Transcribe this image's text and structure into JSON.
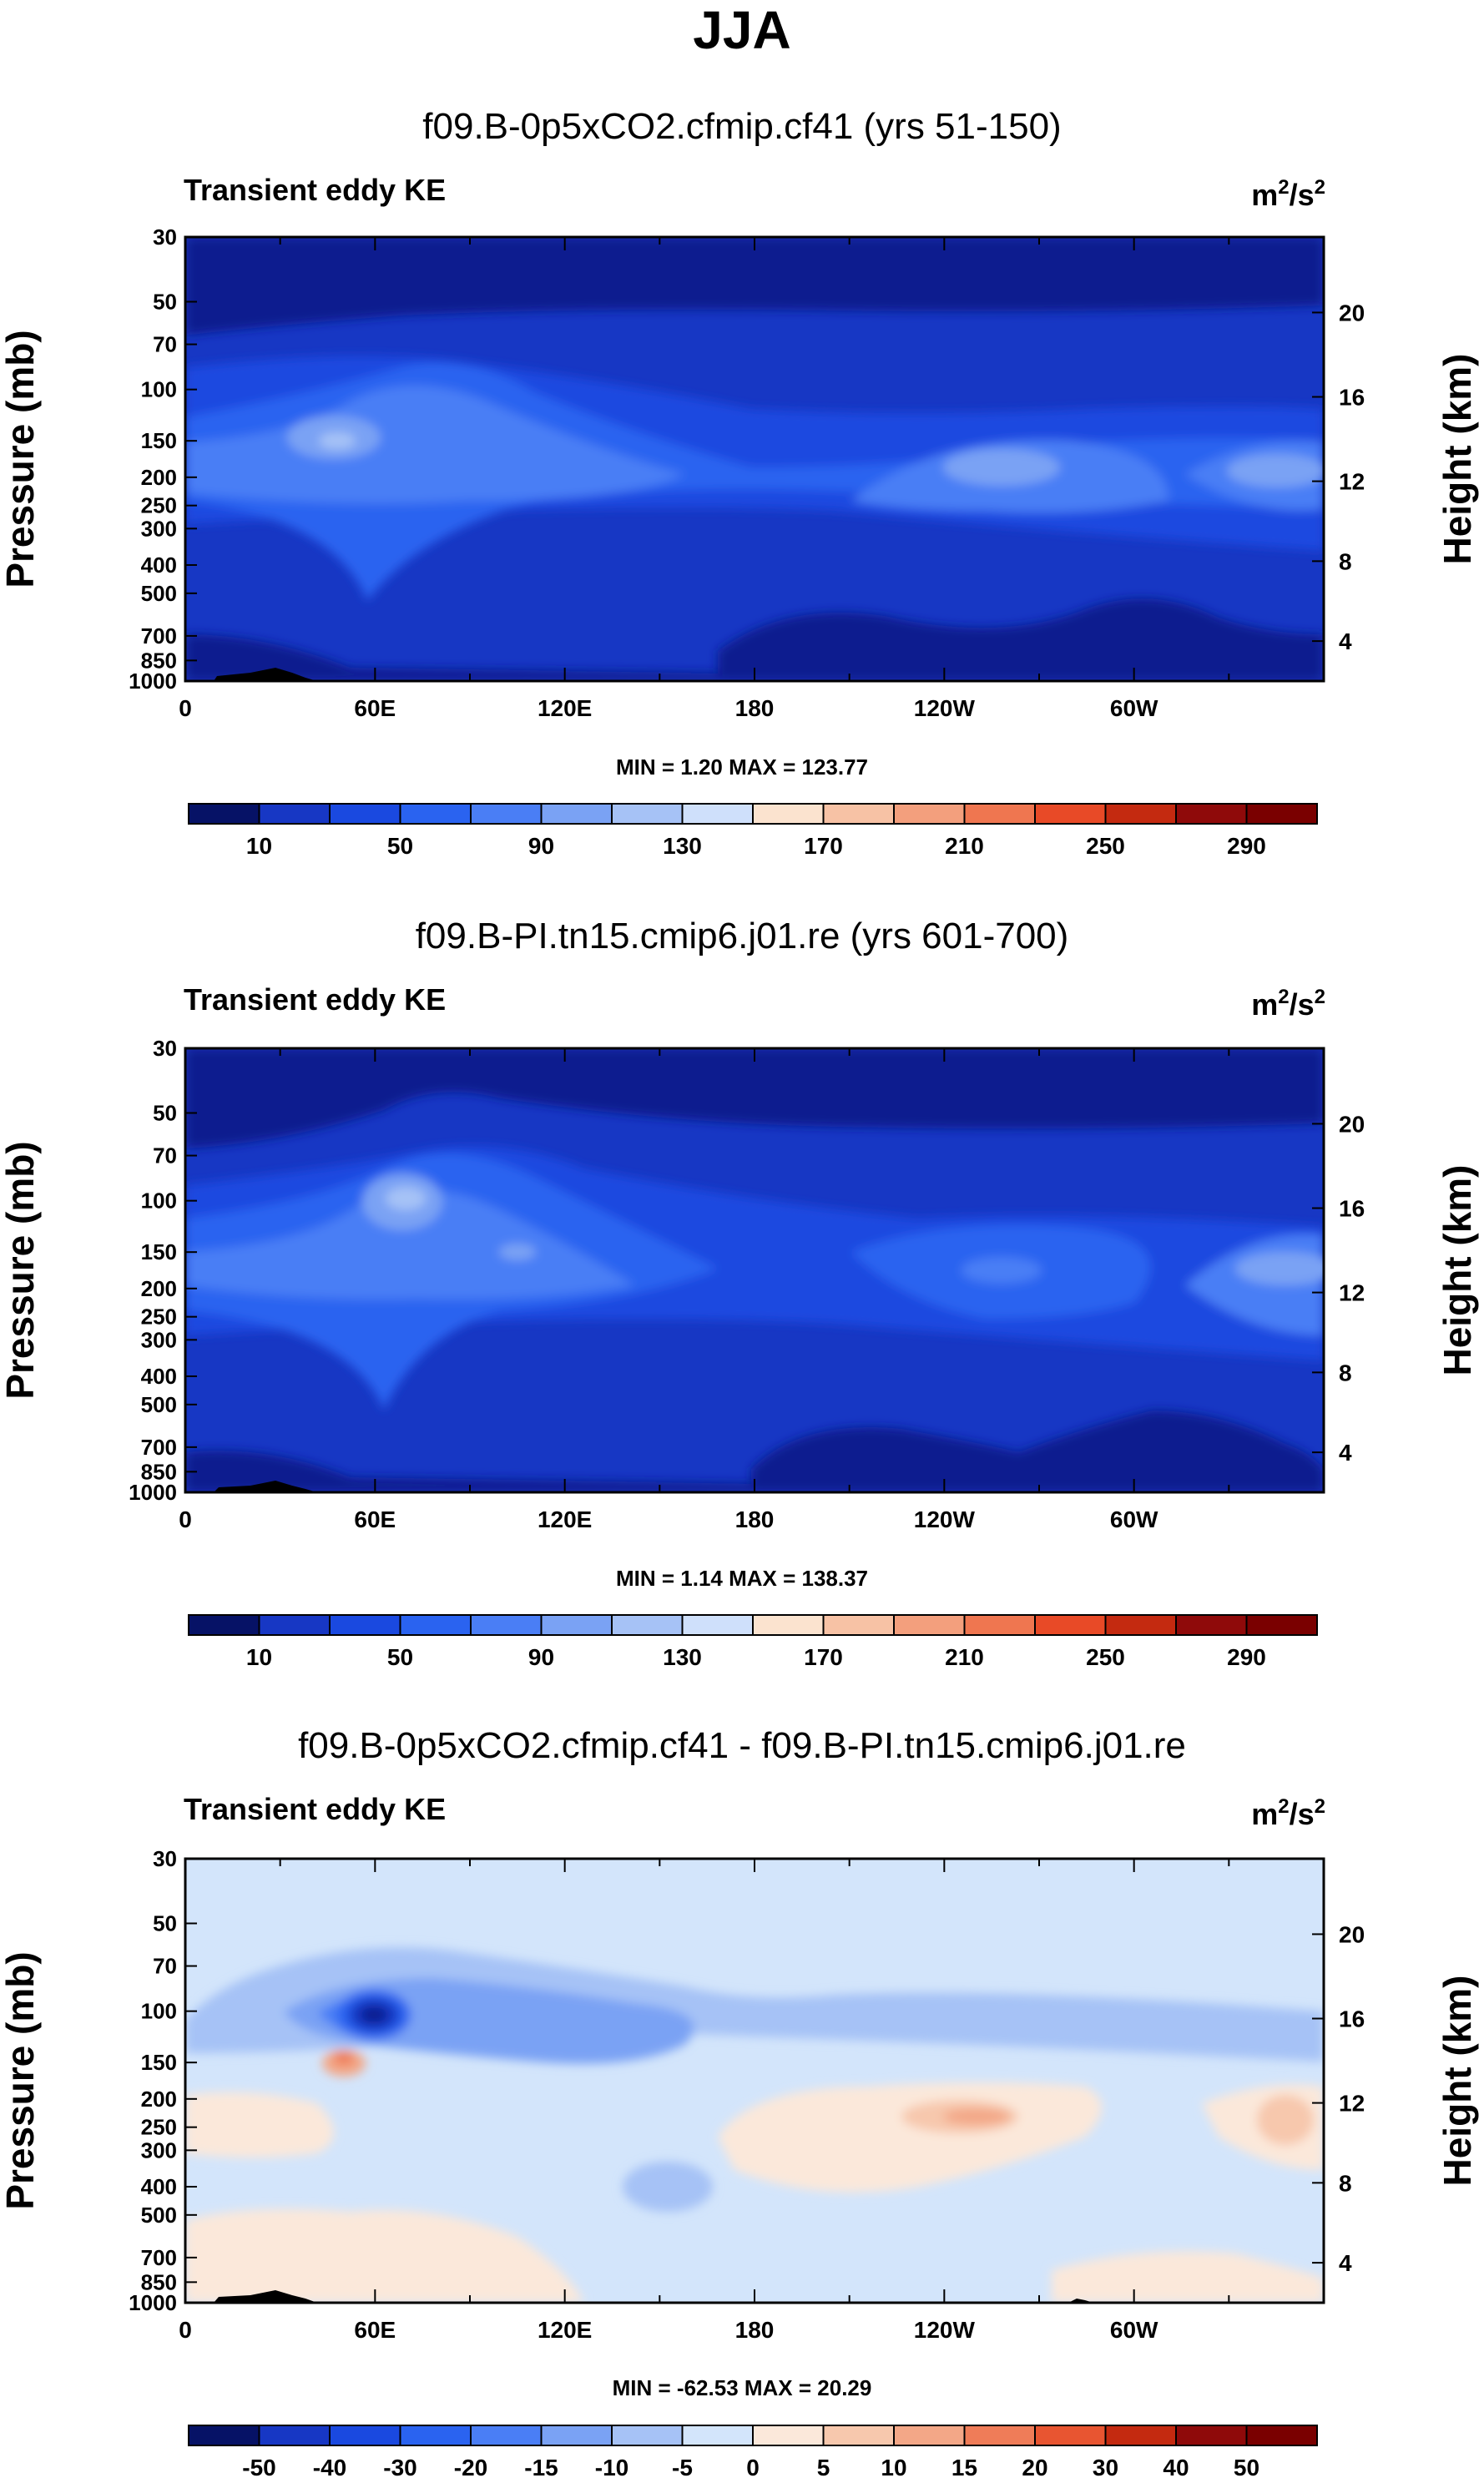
{
  "main_title": "JJA",
  "colorscales": {
    "full": [
      "#0a1f8f",
      "#1737c4",
      "#1a49e0",
      "#2a63f0",
      "#4a7ef5",
      "#7aa2f4",
      "#a6c2f6",
      "#cfe0fb",
      "#fbe3cf",
      "#f7c2a5",
      "#f39f7d",
      "#ef7650",
      "#e84a27",
      "#c42a10",
      "#8f0a0a"
    ],
    "diff": [
      "#0a1f8f",
      "#1737c4",
      "#1a49e0",
      "#2a63f0",
      "#4a7ef5",
      "#7aa2f4",
      "#a6c2f6",
      "#d3e5fb",
      "#fbe8da",
      "#f7c8ad",
      "#f3a787",
      "#ef7c58",
      "#e85531",
      "#c42a10",
      "#8f0a0a"
    ]
  },
  "chart_data": [
    {
      "type": "heatmap",
      "title": "f09.B-0p5xCO2.cfmip.cf41 (yrs 51-150)",
      "left_label": "Transient eddy KE",
      "units_base": "m",
      "units_sup1": "2",
      "units_mid": "/s",
      "units_sup2": "2",
      "ylabel": "Pressure (mb)",
      "ylabel_right": "Height (km)",
      "yticks": [
        "30",
        "50",
        "70",
        "100",
        "150",
        "200",
        "250",
        "300",
        "400",
        "500",
        "700",
        "850",
        "1000"
      ],
      "yticks_right": [
        "20",
        "16",
        "12",
        "8",
        "4"
      ],
      "xticks": [
        "0",
        "60E",
        "120E",
        "180",
        "120W",
        "60W"
      ],
      "xlim_deg": [
        0,
        360
      ],
      "stats": "MIN =   1.20  MAX = 123.77",
      "colorbar_labels": [
        "10",
        "50",
        "90",
        "130",
        "170",
        "210",
        "250",
        "290"
      ],
      "colorbar_levels": [
        10,
        30,
        50,
        70,
        90,
        110,
        130,
        150,
        170,
        190,
        210,
        230,
        250,
        270,
        290
      ],
      "scale": "full"
    },
    {
      "type": "heatmap",
      "title": "f09.B-PI.tn15.cmip6.j01.re (yrs 601-700)",
      "left_label": "Transient eddy KE",
      "units_base": "m",
      "units_sup1": "2",
      "units_mid": "/s",
      "units_sup2": "2",
      "ylabel": "Pressure (mb)",
      "ylabel_right": "Height (km)",
      "yticks": [
        "30",
        "50",
        "70",
        "100",
        "150",
        "200",
        "250",
        "300",
        "400",
        "500",
        "700",
        "850",
        "1000"
      ],
      "yticks_right": [
        "20",
        "16",
        "12",
        "8",
        "4"
      ],
      "xticks": [
        "0",
        "60E",
        "120E",
        "180",
        "120W",
        "60W"
      ],
      "xlim_deg": [
        0,
        360
      ],
      "stats": "MIN =   1.14  MAX = 138.37",
      "colorbar_labels": [
        "10",
        "50",
        "90",
        "130",
        "170",
        "210",
        "250",
        "290"
      ],
      "colorbar_levels": [
        10,
        30,
        50,
        70,
        90,
        110,
        130,
        150,
        170,
        190,
        210,
        230,
        250,
        270,
        290
      ],
      "scale": "full"
    },
    {
      "type": "heatmap",
      "title": "f09.B-0p5xCO2.cfmip.cf41 - f09.B-PI.tn15.cmip6.j01.re",
      "left_label": "Transient eddy KE",
      "units_base": "m",
      "units_sup1": "2",
      "units_mid": "/s",
      "units_sup2": "2",
      "ylabel": "Pressure (mb)",
      "ylabel_right": "Height (km)",
      "yticks": [
        "30",
        "50",
        "70",
        "100",
        "150",
        "200",
        "250",
        "300",
        "400",
        "500",
        "700",
        "850",
        "1000"
      ],
      "yticks_right": [
        "20",
        "16",
        "12",
        "8",
        "4"
      ],
      "xticks": [
        "0",
        "60E",
        "120E",
        "180",
        "120W",
        "60W"
      ],
      "xlim_deg": [
        0,
        360
      ],
      "stats": "MIN = -62.53  MAX =  20.29",
      "colorbar_labels": [
        "-50",
        "-40",
        "-30",
        "-20",
        "-15",
        "-10",
        "-5",
        "0",
        "5",
        "10",
        "15",
        "20",
        "30",
        "40",
        "50"
      ],
      "colorbar_levels": [
        -50,
        -40,
        -30,
        -20,
        -15,
        -10,
        -5,
        0,
        5,
        10,
        15,
        20,
        30,
        40,
        50
      ],
      "scale": "diff"
    }
  ]
}
